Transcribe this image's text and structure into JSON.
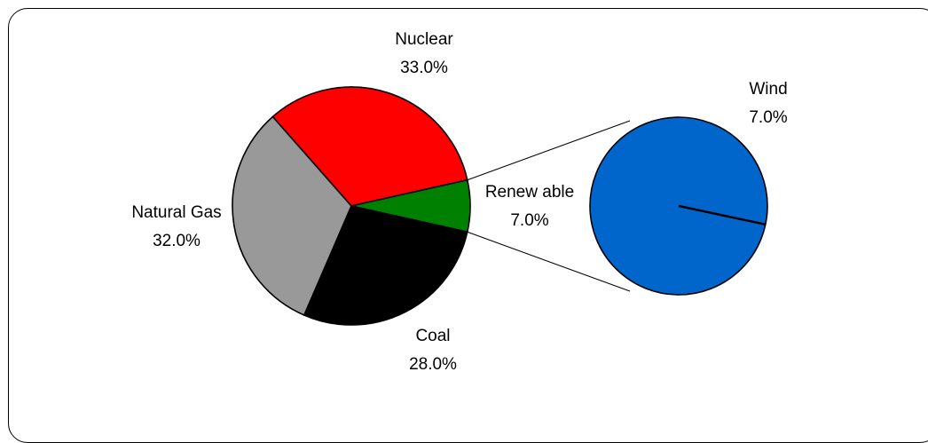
{
  "chart_data": {
    "type": "pie",
    "subtype": "pie-of-pie",
    "title": "",
    "slices": [
      {
        "label": "Nuclear",
        "value": 33.0,
        "value_label": "33.0%",
        "color": "#ff0000"
      },
      {
        "label": "Renew able",
        "value": 7.0,
        "value_label": "7.0%",
        "color": "#008000"
      },
      {
        "label": "Coal",
        "value": 28.0,
        "value_label": "28.0%",
        "color": "#000000"
      },
      {
        "label": "Natural Gas",
        "value": 32.0,
        "value_label": "32.0%",
        "color": "#999999"
      }
    ],
    "breakout": {
      "parent": "Renew able",
      "slices": [
        {
          "label": "Wind",
          "value": 7.0,
          "value_label": "7.0%",
          "color": "#0066cc"
        }
      ]
    },
    "legend": "none"
  }
}
